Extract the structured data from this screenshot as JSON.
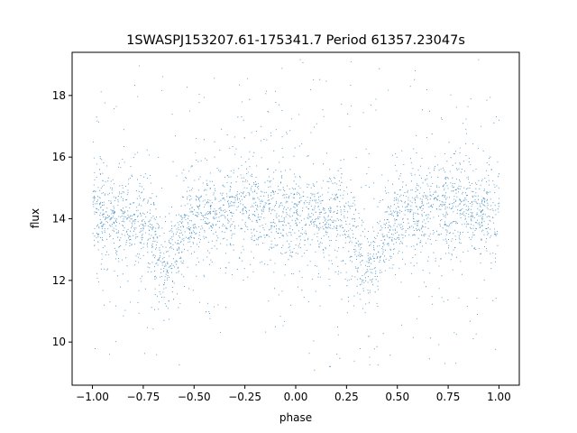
{
  "chart_data": {
    "type": "scatter",
    "title": "1SWASPJ153207.61-175341.7 Period 61357.23047s",
    "xlabel": "phase",
    "ylabel": "flux",
    "xlim": [
      -1.1,
      1.1
    ],
    "ylim": [
      8.6,
      19.4
    ],
    "xticks": [
      -1.0,
      -0.75,
      -0.5,
      -0.25,
      0.0,
      0.25,
      0.5,
      0.75,
      1.0
    ],
    "xtick_labels": [
      "−1.00",
      "−0.75",
      "−0.50",
      "−0.25",
      "0.00",
      "0.25",
      "0.50",
      "0.75",
      "1.00"
    ],
    "yticks": [
      10,
      12,
      14,
      16,
      18
    ],
    "ytick_labels": [
      "10",
      "12",
      "14",
      "16",
      "18"
    ],
    "grid": false,
    "legend": "none",
    "marker_color": "#1f77b4",
    "series": [
      {
        "x_range": [
          -1.0,
          1.0
        ],
        "y_range": [
          9.1,
          19.2
        ],
        "baseline_flux": 14.1,
        "core_halfwidth": 0.9,
        "eclipse": {
          "phases": [
            -0.64,
            0.36
          ],
          "depth": 1.6,
          "width": 0.08
        },
        "secondary_bump": {
          "phases": [
            -0.25,
            0.75
          ],
          "amplitude": 0.4
        }
      }
    ]
  }
}
